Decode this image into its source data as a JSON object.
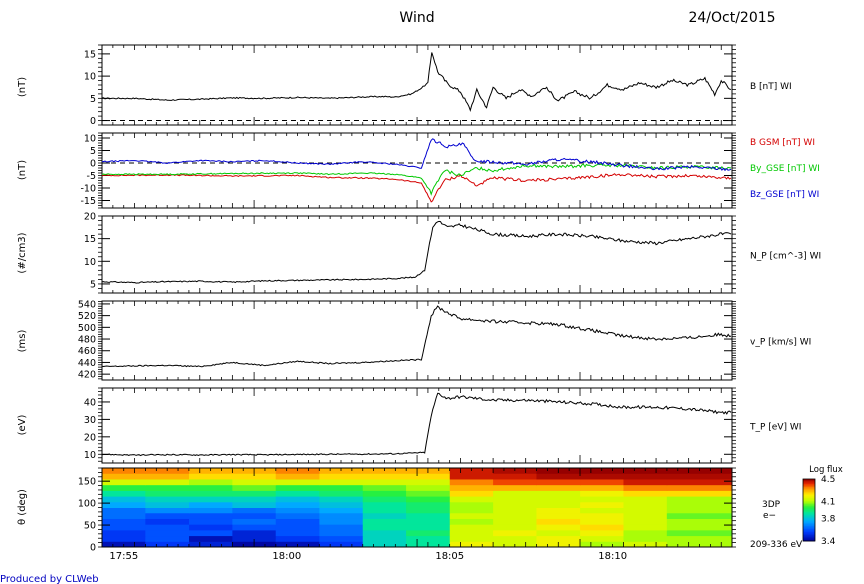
{
  "header": {
    "title": "Wind",
    "date": "24/Oct/2015",
    "footer": "Produced by CLWeb"
  },
  "colors": {
    "bx": "#d40000",
    "by": "#00c800",
    "bz": "#0000d0",
    "line": "#000000",
    "footer": "#0000c0"
  },
  "chart_data": [
    {
      "type": "line",
      "panel": "b-total",
      "ylabel": "(nT)",
      "ylim": [
        -1,
        17
      ],
      "yticks": [
        0,
        5,
        10,
        15
      ],
      "xlim_minutes": [
        0,
        19.33
      ],
      "x_tick_labels": [
        "17:55",
        "18:00",
        "18:05",
        "18:10"
      ],
      "x_tick_minutes": [
        0.67,
        5.67,
        10.67,
        15.67
      ],
      "hline": 0,
      "series": [
        {
          "name": "B [nT] WI",
          "color": "#000000",
          "points": [
            [
              0,
              5.0
            ],
            [
              1,
              5.0
            ],
            [
              2,
              4.6
            ],
            [
              3,
              4.8
            ],
            [
              4,
              5.1
            ],
            [
              5,
              5.0
            ],
            [
              6,
              5.2
            ],
            [
              7,
              5.0
            ],
            [
              8,
              5.3
            ],
            [
              8.6,
              5.4
            ],
            [
              9,
              5.3
            ],
            [
              9.5,
              6.0
            ],
            [
              9.8,
              7.3
            ],
            [
              10.0,
              8.5
            ],
            [
              10.12,
              15.5
            ],
            [
              10.3,
              11
            ],
            [
              10.6,
              8.3
            ],
            [
              11,
              6.5
            ],
            [
              11.3,
              2.5
            ],
            [
              11.5,
              6.8
            ],
            [
              11.8,
              3
            ],
            [
              12,
              7.5
            ],
            [
              12.4,
              5
            ],
            [
              12.8,
              7
            ],
            [
              13.2,
              5.5
            ],
            [
              13.6,
              7.5
            ],
            [
              14,
              4.5
            ],
            [
              14.5,
              6.5
            ],
            [
              15,
              5
            ],
            [
              15.5,
              8
            ],
            [
              16,
              7
            ],
            [
              16.5,
              8.5
            ],
            [
              17,
              7.5
            ],
            [
              17.5,
              9
            ],
            [
              18,
              8
            ],
            [
              18.5,
              9.5
            ],
            [
              18.8,
              6
            ],
            [
              19,
              9
            ],
            [
              19.3,
              7
            ]
          ]
        }
      ]
    },
    {
      "type": "line",
      "panel": "b-gsm",
      "ylabel": "(nT)",
      "ylim": [
        -18,
        12
      ],
      "yticks": [
        -15,
        -10,
        -5,
        0,
        5,
        10
      ],
      "xlim_minutes": [
        0,
        19.33
      ],
      "hline": 0,
      "series": [
        {
          "name": "B GSM [nT] WI",
          "color": "#d40000",
          "points": [
            [
              0,
              -5.0
            ],
            [
              2,
              -4.8
            ],
            [
              4,
              -5.2
            ],
            [
              6,
              -5.0
            ],
            [
              7,
              -5.8
            ],
            [
              8,
              -6.0
            ],
            [
              9,
              -6.5
            ],
            [
              9.8,
              -8.0
            ],
            [
              10.1,
              -15.5
            ],
            [
              10.5,
              -7.0
            ],
            [
              11,
              -5.0
            ],
            [
              11.5,
              -9.0
            ],
            [
              12,
              -6.0
            ],
            [
              13,
              -7.0
            ],
            [
              14,
              -6.5
            ],
            [
              15,
              -5.5
            ],
            [
              16,
              -4.5
            ],
            [
              17,
              -5.5
            ],
            [
              18,
              -5.0
            ],
            [
              19.3,
              -6.0
            ]
          ]
        },
        {
          "name": "By_GSE [nT] WI",
          "color": "#00c800",
          "points": [
            [
              0,
              -4.5
            ],
            [
              2,
              -4.5
            ],
            [
              4,
              -4.2
            ],
            [
              6,
              -4.0
            ],
            [
              7,
              -4.5
            ],
            [
              8,
              -4.0
            ],
            [
              9,
              -4.5
            ],
            [
              9.8,
              -6.0
            ],
            [
              10.1,
              -12.0
            ],
            [
              10.5,
              -3.0
            ],
            [
              11,
              -5.0
            ],
            [
              11.5,
              -2.0
            ],
            [
              12,
              -3.0
            ],
            [
              13,
              -1.0
            ],
            [
              14,
              -1.5
            ],
            [
              15,
              -1.0
            ],
            [
              16,
              -1.0
            ],
            [
              17,
              -2.0
            ],
            [
              18,
              -1.5
            ],
            [
              19.3,
              -2.0
            ]
          ]
        },
        {
          "name": "Bz_GSE [nT] WI",
          "color": "#0000d0",
          "points": [
            [
              0,
              0.5
            ],
            [
              1,
              1.0
            ],
            [
              2,
              0.0
            ],
            [
              3,
              1.0
            ],
            [
              4,
              0.5
            ],
            [
              5,
              1.0
            ],
            [
              6,
              0.0
            ],
            [
              7,
              -0.5
            ],
            [
              8,
              0.5
            ],
            [
              9,
              -0.5
            ],
            [
              9.8,
              -2.0
            ],
            [
              10.1,
              9.5
            ],
            [
              10.6,
              6.5
            ],
            [
              11.1,
              7.5
            ],
            [
              11.4,
              1.0
            ],
            [
              12,
              0.5
            ],
            [
              13,
              -0.5
            ],
            [
              14,
              1.5
            ],
            [
              15,
              0.5
            ],
            [
              16,
              -1.0
            ],
            [
              17,
              -2.5
            ],
            [
              18,
              -1.5
            ],
            [
              19.3,
              -2.5
            ]
          ]
        }
      ]
    },
    {
      "type": "line",
      "panel": "density",
      "ylabel": "(#/cm3)",
      "ylim": [
        3,
        20
      ],
      "yticks": [
        5,
        10,
        15,
        20
      ],
      "xlim_minutes": [
        0,
        19.33
      ],
      "series": [
        {
          "name": "N_P [cm^-3] WI",
          "color": "#000000",
          "points": [
            [
              0,
              5.5
            ],
            [
              1,
              5.3
            ],
            [
              2,
              5.5
            ],
            [
              3,
              5.6
            ],
            [
              4,
              5.4
            ],
            [
              5,
              5.7
            ],
            [
              6,
              5.8
            ],
            [
              7,
              5.9
            ],
            [
              8,
              6.0
            ],
            [
              9,
              6.2
            ],
            [
              9.6,
              6.5
            ],
            [
              9.9,
              8.0
            ],
            [
              10.0,
              12.0
            ],
            [
              10.15,
              17.5
            ],
            [
              10.3,
              19.0
            ],
            [
              10.6,
              17.5
            ],
            [
              11,
              18.0
            ],
            [
              11.5,
              17.0
            ],
            [
              12,
              16.0
            ],
            [
              13,
              15.5
            ],
            [
              14,
              16.0
            ],
            [
              15,
              15.5
            ],
            [
              16,
              14.5
            ],
            [
              17,
              14.0
            ],
            [
              18,
              15.0
            ],
            [
              19,
              16.0
            ],
            [
              19.3,
              16.0
            ]
          ]
        }
      ]
    },
    {
      "type": "line",
      "panel": "velocity",
      "ylabel": "(ms)",
      "ylim": [
        410,
        545
      ],
      "yticks": [
        420,
        440,
        460,
        480,
        500,
        520,
        540
      ],
      "xlim_minutes": [
        0,
        19.33
      ],
      "series": [
        {
          "name": "v_P [km/s] WI",
          "color": "#000000",
          "points": [
            [
              0,
              433
            ],
            [
              1,
              434
            ],
            [
              2,
              435
            ],
            [
              3,
              433
            ],
            [
              4,
              440
            ],
            [
              5,
              435
            ],
            [
              6,
              442
            ],
            [
              7,
              438
            ],
            [
              8,
              440
            ],
            [
              9,
              443
            ],
            [
              9.8,
              445
            ],
            [
              10.1,
              520
            ],
            [
              10.3,
              535
            ],
            [
              10.6,
              525
            ],
            [
              11,
              515
            ],
            [
              12,
              510
            ],
            [
              13,
              508
            ],
            [
              14,
              505
            ],
            [
              15,
              495
            ],
            [
              16,
              485
            ],
            [
              17,
              480
            ],
            [
              18,
              482
            ],
            [
              19,
              488
            ],
            [
              19.3,
              485
            ]
          ]
        }
      ]
    },
    {
      "type": "line",
      "panel": "temperature",
      "ylabel": "(eV)",
      "ylim": [
        5,
        48
      ],
      "yticks": [
        10,
        20,
        30,
        40
      ],
      "xlim_minutes": [
        0,
        19.33
      ],
      "series": [
        {
          "name": "T_P [eV] WI",
          "color": "#000000",
          "points": [
            [
              0,
              10
            ],
            [
              1,
              9.5
            ],
            [
              2,
              9.8
            ],
            [
              3,
              9.6
            ],
            [
              4,
              9.8
            ],
            [
              5,
              9.7
            ],
            [
              6,
              9.9
            ],
            [
              7,
              10
            ],
            [
              8,
              10.1
            ],
            [
              9,
              10.3
            ],
            [
              9.9,
              11
            ],
            [
              10.1,
              32
            ],
            [
              10.3,
              45
            ],
            [
              10.6,
              42
            ],
            [
              11,
              43
            ],
            [
              12,
              41
            ],
            [
              13,
              41
            ],
            [
              14,
              40
            ],
            [
              15,
              39
            ],
            [
              16,
              37
            ],
            [
              17,
              37
            ],
            [
              18,
              36
            ],
            [
              19,
              34
            ],
            [
              19.3,
              34
            ]
          ]
        }
      ]
    },
    {
      "type": "heatmap",
      "panel": "pitch-angle",
      "ylabel": "θ (deg)",
      "ylim": [
        0,
        180
      ],
      "yticks": [
        0,
        50,
        100,
        150
      ],
      "xlim_minutes": [
        0,
        19.33
      ],
      "instrument": "3DP",
      "species": "e−",
      "energy_range": "209-336 eV",
      "colorbar": {
        "title": "Log flux",
        "min": 3.4,
        "max": 4.5,
        "ticks": [
          4.5,
          4.1,
          3.8,
          3.4
        ]
      },
      "x_edges_minutes": [
        0,
        1.33,
        2.67,
        4.0,
        5.33,
        6.67,
        8.0,
        9.33,
        10.67,
        12.0,
        13.33,
        14.67,
        16.0,
        17.33,
        19.33
      ],
      "y_edges_deg": [
        0,
        13,
        26,
        39,
        52,
        65,
        78,
        90,
        103,
        116,
        129,
        142,
        155,
        168,
        180
      ],
      "values": [
        [
          3.45,
          3.55,
          3.5,
          3.42,
          3.45,
          3.55,
          3.85,
          3.9,
          4.2,
          4.15,
          4.2,
          4.1,
          4.15,
          4.1
        ],
        [
          3.55,
          3.6,
          3.45,
          3.5,
          3.55,
          3.6,
          3.85,
          3.9,
          4.15,
          4.15,
          4.2,
          4.15,
          4.1,
          4.1
        ],
        [
          3.55,
          3.6,
          3.6,
          3.5,
          3.6,
          3.65,
          3.85,
          3.95,
          4.15,
          4.2,
          4.15,
          4.2,
          4.1,
          4.05
        ],
        [
          3.6,
          3.6,
          3.55,
          3.6,
          3.6,
          3.65,
          3.9,
          3.9,
          4.15,
          4.15,
          4.2,
          4.25,
          4.15,
          4.1
        ],
        [
          3.6,
          3.55,
          3.6,
          3.65,
          3.6,
          3.7,
          3.9,
          3.9,
          4.1,
          4.15,
          4.25,
          4.2,
          4.15,
          4.1
        ],
        [
          3.65,
          3.6,
          3.6,
          3.6,
          3.65,
          3.7,
          3.85,
          3.9,
          4.15,
          4.15,
          4.2,
          4.2,
          4.15,
          4.05
        ],
        [
          3.65,
          3.7,
          3.7,
          3.65,
          3.7,
          3.75,
          3.9,
          3.95,
          4.1,
          4.15,
          4.2,
          4.15,
          4.15,
          4.1
        ],
        [
          3.75,
          3.8,
          3.75,
          3.8,
          3.75,
          3.8,
          3.9,
          3.95,
          4.1,
          4.15,
          4.15,
          4.2,
          4.15,
          4.1
        ],
        [
          3.8,
          3.85,
          3.85,
          3.85,
          3.8,
          3.85,
          3.95,
          4.0,
          4.15,
          4.15,
          4.15,
          4.15,
          4.15,
          4.1
        ],
        [
          3.9,
          3.95,
          3.95,
          3.95,
          3.9,
          3.95,
          4.0,
          4.05,
          4.25,
          4.15,
          4.15,
          4.2,
          4.25,
          4.25
        ],
        [
          4.0,
          4.0,
          4.0,
          4.05,
          4.0,
          4.0,
          4.05,
          4.1,
          4.3,
          4.3,
          4.3,
          4.3,
          4.35,
          4.35
        ],
        [
          4.15,
          4.15,
          4.1,
          4.15,
          4.15,
          4.15,
          4.15,
          4.15,
          4.35,
          4.4,
          4.4,
          4.4,
          4.45,
          4.45
        ],
        [
          4.3,
          4.3,
          4.25,
          4.25,
          4.3,
          4.25,
          4.25,
          4.25,
          4.45,
          4.45,
          4.48,
          4.48,
          4.48,
          4.48
        ],
        [
          4.35,
          4.35,
          4.3,
          4.3,
          4.35,
          4.3,
          4.3,
          4.3,
          4.45,
          4.48,
          4.5,
          4.5,
          4.5,
          4.5
        ]
      ]
    }
  ]
}
